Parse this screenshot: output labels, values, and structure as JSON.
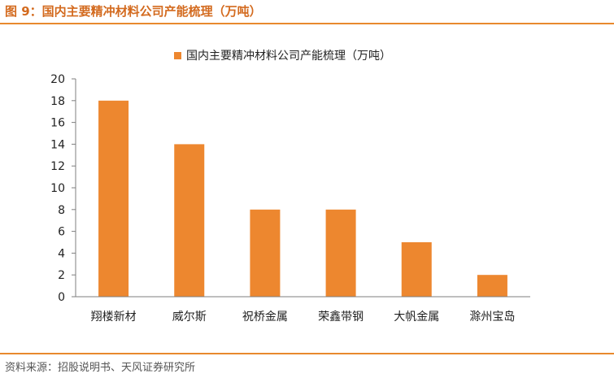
{
  "figure_title": "图 9：国内主要精冲材料公司产能梳理（万吨）",
  "source": "资料来源：招股说明书、天风证券研究所",
  "colors": {
    "accent": "#e8892e",
    "title": "#d36a1e",
    "bar": "#ed872f",
    "axis": "#7f7f7f"
  },
  "chart_data": {
    "type": "bar",
    "categories": [
      "翔楼新材",
      "威尔斯",
      "祝桥金属",
      "荣鑫带钢",
      "大帆金属",
      "滁州宝岛"
    ],
    "series": [
      {
        "name": "国内主要精冲材料公司产能梳理（万吨）",
        "values": [
          18,
          14,
          8,
          8,
          5,
          2
        ]
      }
    ],
    "ylim": [
      0,
      20
    ],
    "yticks": [
      "0",
      "2",
      "4",
      "6",
      "8",
      "10",
      "12",
      "14",
      "16",
      "18",
      "20"
    ],
    "grid": false,
    "legend": "top-center"
  }
}
